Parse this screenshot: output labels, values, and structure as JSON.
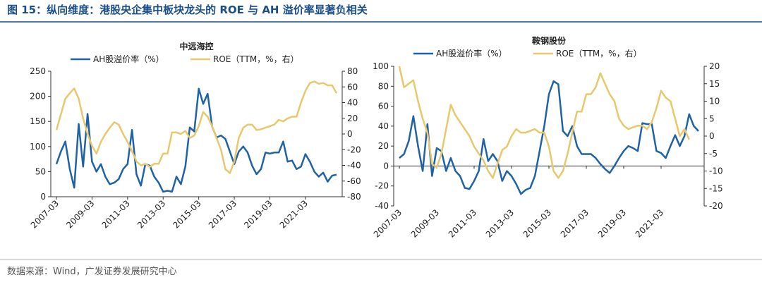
{
  "title": "图 15：纵向维度：港股央企集中板块龙头的 ROE 与 AH 溢价率显著负相关",
  "source": "数据来源：Wind，广发证券发展研究中心",
  "chart_data": [
    {
      "type": "line",
      "title": "中远海控",
      "x": [
        "2007-03",
        "2007-06",
        "2007-09",
        "2007-12",
        "2008-03",
        "2008-06",
        "2008-09",
        "2008-12",
        "2009-03",
        "2009-06",
        "2009-09",
        "2009-12",
        "2010-03",
        "2010-06",
        "2010-09",
        "2010-12",
        "2011-03",
        "2011-06",
        "2011-09",
        "2011-12",
        "2012-03",
        "2012-06",
        "2012-09",
        "2012-12",
        "2013-03",
        "2013-06",
        "2013-09",
        "2013-12",
        "2014-03",
        "2014-06",
        "2014-09",
        "2014-12",
        "2015-03",
        "2015-06",
        "2015-09",
        "2015-12",
        "2016-03",
        "2016-06",
        "2016-09",
        "2016-12",
        "2017-03",
        "2017-06",
        "2017-09",
        "2017-12",
        "2018-03",
        "2018-06",
        "2018-09",
        "2018-12",
        "2019-03",
        "2019-06",
        "2019-09",
        "2019-12",
        "2020-03",
        "2020-06",
        "2020-09",
        "2020-12",
        "2021-03",
        "2021-06",
        "2021-09",
        "2021-12",
        "2022-03",
        "2022-06",
        "2022-09",
        "2022-12"
      ],
      "xticks": [
        "2007-03",
        "2009-03",
        "2011-03",
        "2013-03",
        "2015-03",
        "2017-03",
        "2019-03",
        "2021-03"
      ],
      "ylim": [
        0,
        250
      ],
      "yticks": [
        0,
        50,
        100,
        150,
        200,
        250
      ],
      "y2lim": [
        -80,
        80
      ],
      "y2ticks": [
        -80,
        -60,
        -40,
        -20,
        0,
        20,
        40,
        60,
        80
      ],
      "series": [
        {
          "name": "AH股溢价率（%）",
          "color": "#1f63a6",
          "values": [
            65,
            90,
            110,
            55,
            18,
            145,
            60,
            165,
            70,
            50,
            65,
            40,
            25,
            28,
            35,
            55,
            65,
            133,
            45,
            22,
            65,
            62,
            40,
            28,
            10,
            12,
            10,
            40,
            25,
            60,
            138,
            130,
            215,
            185,
            205,
            140,
            118,
            122,
            115,
            90,
            65,
            90,
            100,
            88,
            62,
            45,
            55,
            88,
            86,
            88,
            88,
            110,
            70,
            72,
            55,
            60,
            85,
            70,
            50,
            40,
            48,
            30,
            42,
            44
          ]
        },
        {
          "name": "ROE（TTM，%，右）",
          "color": "#e8c86c",
          "axis": "y2",
          "values": [
            5,
            25,
            45,
            52,
            58,
            45,
            20,
            0,
            -15,
            -25,
            -10,
            0,
            8,
            15,
            12,
            0,
            -10,
            -22,
            -35,
            -40,
            -38,
            -42,
            -38,
            -38,
            -25,
            -25,
            2,
            2,
            0,
            4,
            -5,
            -2,
            10,
            28,
            22,
            10,
            -5,
            -20,
            -45,
            -50,
            -35,
            -5,
            8,
            12,
            12,
            5,
            6,
            8,
            10,
            12,
            18,
            16,
            20,
            22,
            22,
            40,
            55,
            65,
            67,
            64,
            65,
            62,
            62,
            52
          ]
        }
      ]
    },
    {
      "type": "line",
      "title": "鞍钢股份",
      "x": [
        "2007-03",
        "2007-06",
        "2007-09",
        "2007-12",
        "2008-03",
        "2008-06",
        "2008-09",
        "2008-12",
        "2009-03",
        "2009-06",
        "2009-09",
        "2009-12",
        "2010-03",
        "2010-06",
        "2010-09",
        "2010-12",
        "2011-03",
        "2011-06",
        "2011-09",
        "2011-12",
        "2012-03",
        "2012-06",
        "2012-09",
        "2012-12",
        "2013-03",
        "2013-06",
        "2013-09",
        "2013-12",
        "2014-03",
        "2014-06",
        "2014-09",
        "2014-12",
        "2015-03",
        "2015-06",
        "2015-09",
        "2015-12",
        "2016-03",
        "2016-06",
        "2016-09",
        "2016-12",
        "2017-03",
        "2017-06",
        "2017-09",
        "2017-12",
        "2018-03",
        "2018-06",
        "2018-09",
        "2018-12",
        "2019-03",
        "2019-06",
        "2019-09",
        "2019-12",
        "2020-03",
        "2020-06",
        "2020-09",
        "2020-12",
        "2021-03",
        "2021-06",
        "2021-09",
        "2021-12",
        "2022-03",
        "2022-06",
        "2022-09",
        "2022-12",
        "2023-03"
      ],
      "xticks": [
        "2007-03",
        "2009-03",
        "2011-03",
        "2013-03",
        "2015-03",
        "2017-03",
        "2019-03",
        "2021-03"
      ],
      "ylim": [
        -40,
        100
      ],
      "yticks": [
        -40,
        -20,
        0,
        20,
        40,
        60,
        80,
        100
      ],
      "y2lim": [
        -20,
        20
      ],
      "y2ticks": [
        -20,
        -15,
        -10,
        -5,
        0,
        5,
        10,
        15,
        20
      ],
      "series": [
        {
          "name": "AH股溢价率（%）",
          "color": "#1f63a6",
          "values": [
            8,
            12,
            25,
            50,
            20,
            -5,
            42,
            -10,
            18,
            15,
            -5,
            8,
            -5,
            -10,
            -22,
            -23,
            -15,
            -5,
            27,
            5,
            12,
            5,
            -15,
            -5,
            -10,
            -18,
            -28,
            -24,
            -22,
            -10,
            15,
            40,
            72,
            85,
            82,
            35,
            30,
            40,
            20,
            12,
            12,
            12,
            8,
            2,
            -3,
            -7,
            0,
            8,
            15,
            20,
            18,
            15,
            43,
            42,
            42,
            15,
            13,
            8,
            20,
            31,
            20,
            30,
            52,
            40,
            35
          ]
        },
        {
          "name": "ROE（TTM，%，右）",
          "color": "#e8c86c",
          "axis": "y2",
          "values": [
            20,
            14,
            15,
            16,
            10,
            5,
            1,
            -8,
            -9,
            -5,
            2,
            9,
            6,
            4,
            2,
            0,
            -3,
            -5,
            -7,
            -10,
            -12,
            -8,
            -4,
            -3,
            0,
            2,
            1,
            1,
            1.5,
            2,
            1,
            1,
            -3,
            -10,
            -12,
            -10,
            -5,
            1,
            7,
            7,
            12,
            12,
            14,
            18,
            15,
            12,
            10,
            5,
            3,
            2,
            2.5,
            3,
            3,
            2,
            4,
            8,
            13,
            11,
            10,
            5,
            0,
            2,
            -1,
            null,
            null
          ]
        }
      ]
    }
  ]
}
